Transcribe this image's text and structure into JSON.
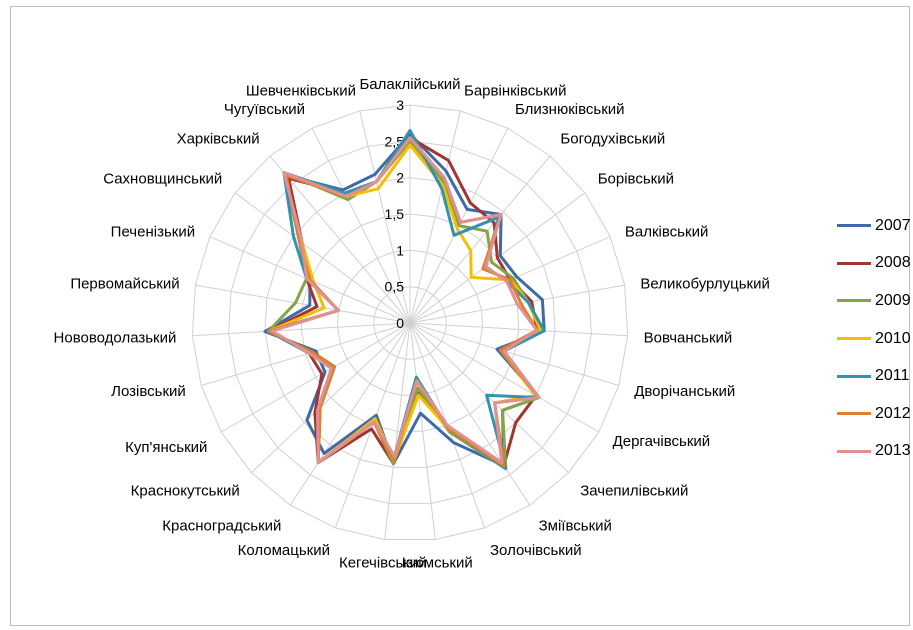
{
  "chart_data": {
    "type": "radar",
    "ylim": [
      0,
      3
    ],
    "ticks": [
      "0",
      "0,5",
      "1",
      "1,5",
      "2",
      "2,5",
      "3"
    ],
    "grid": true,
    "legend_position": "right",
    "categories": [
      "Балаклійський",
      "Барвінківський",
      "Близнюківський",
      "Богодухівський",
      "Борівський",
      "Валківський",
      "Великобурлуцький",
      "Вовчанський",
      "Дворічанський",
      "Дергачівський",
      "Зачепилівський",
      "Зміївський",
      "Золочівський",
      "Ізюмський",
      "Кегечівський",
      "Коломацький",
      "Красноградський",
      "Краснокутський",
      "Куп'янський",
      "Лозівський",
      "Нововодолазький",
      "Первомайський",
      "Печенізький",
      "Сахновщинський",
      "Харківський",
      "Чугуївський",
      "Шевченківський"
    ],
    "series": [
      {
        "name": "2007",
        "color": "#3e6aa8",
        "values": [
          2.6,
          2.15,
          1.75,
          1.95,
          1.55,
          1.6,
          1.85,
          1.85,
          1.25,
          2.05,
          1.75,
          2.35,
          1.75,
          1.25,
          1.95,
          1.35,
          2.15,
          1.95,
          1.35,
          1.35,
          2.0,
          1.4,
          1.5,
          1.9,
          2.65,
          2.05,
          2.1
        ]
      },
      {
        "name": "2008",
        "color": "#a03532",
        "values": [
          2.55,
          2.3,
          1.85,
          1.8,
          1.5,
          1.5,
          1.7,
          1.75,
          1.3,
          2.0,
          2.0,
          2.35,
          1.55,
          0.95,
          1.95,
          1.55,
          2.3,
          1.8,
          1.4,
          1.45,
          1.95,
          1.3,
          1.55,
          1.85,
          2.6,
          2.0,
          2.0
        ]
      },
      {
        "name": "2009",
        "color": "#86a347",
        "values": [
          2.5,
          2.0,
          1.5,
          1.65,
          1.4,
          1.55,
          1.65,
          1.85,
          1.3,
          2.05,
          1.75,
          2.4,
          1.6,
          0.9,
          1.95,
          1.45,
          2.3,
          1.7,
          1.2,
          1.4,
          1.95,
          1.6,
          1.55,
          1.9,
          2.7,
          1.9,
          2.0
        ]
      },
      {
        "name": "2010",
        "color": "#f5bf00",
        "values": [
          2.45,
          1.95,
          1.45,
          1.3,
          1.05,
          1.5,
          1.65,
          1.8,
          1.3,
          2.0,
          1.6,
          2.35,
          1.55,
          1.0,
          1.9,
          1.4,
          2.3,
          1.7,
          1.2,
          1.45,
          1.95,
          1.2,
          1.45,
          1.85,
          2.7,
          1.95,
          1.9
        ]
      },
      {
        "name": "2011",
        "color": "#3591b0",
        "values": [
          2.65,
          1.9,
          1.35,
          1.9,
          1.3,
          1.45,
          1.65,
          1.85,
          1.35,
          2.05,
          1.45,
          2.4,
          1.55,
          0.75,
          1.85,
          1.45,
          2.3,
          1.7,
          1.2,
          1.45,
          1.95,
          1.0,
          1.55,
          2.0,
          2.7,
          2.0,
          2.0
        ]
      },
      {
        "name": "2012",
        "color": "#e07f2f",
        "values": [
          2.55,
          2.05,
          1.55,
          1.95,
          1.25,
          1.5,
          1.55,
          1.75,
          1.3,
          2.05,
          1.6,
          2.35,
          1.55,
          0.8,
          1.9,
          1.45,
          2.3,
          1.7,
          1.2,
          1.4,
          1.95,
          1.0,
          1.5,
          1.9,
          2.65,
          1.95,
          2.0
        ]
      },
      {
        "name": "2013",
        "color": "#e0908e",
        "values": [
          2.55,
          2.05,
          1.55,
          1.95,
          1.3,
          1.45,
          1.5,
          1.75,
          1.35,
          2.05,
          1.6,
          2.3,
          1.5,
          0.8,
          1.85,
          1.45,
          2.3,
          1.75,
          1.25,
          1.45,
          1.9,
          1.0,
          1.55,
          1.85,
          2.7,
          1.95,
          2.0
        ]
      }
    ]
  }
}
